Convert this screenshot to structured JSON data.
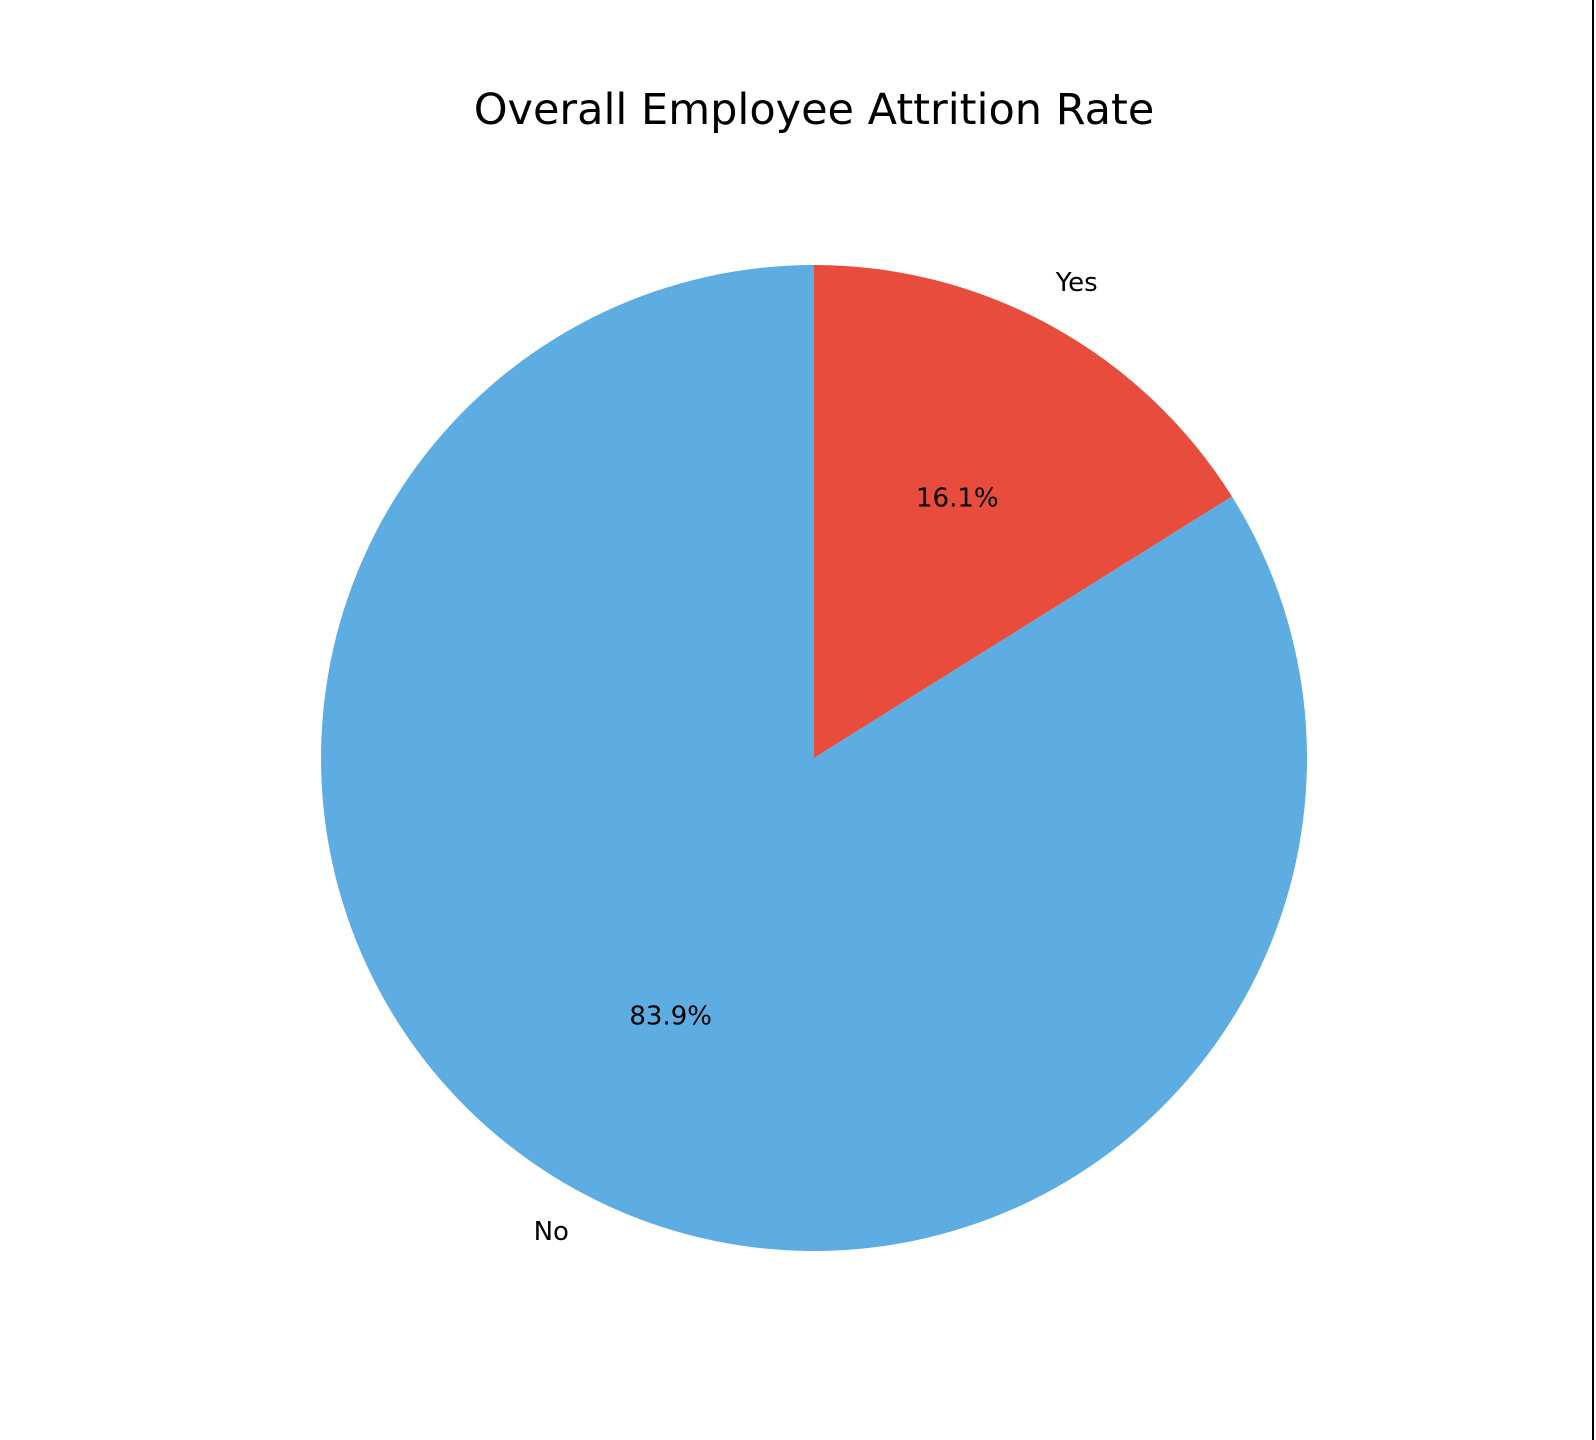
{
  "chart_data": {
    "type": "pie",
    "title": "Overall Employee Attrition Rate",
    "slices": [
      {
        "label": "Yes",
        "value": 16.1,
        "pct_label": "16.1%",
        "color": "#e74c3c"
      },
      {
        "label": "No",
        "value": 83.9,
        "pct_label": "83.9%",
        "color": "#5dade2"
      }
    ],
    "start_angle": "top",
    "direction": "clockwise",
    "legend": "none"
  }
}
